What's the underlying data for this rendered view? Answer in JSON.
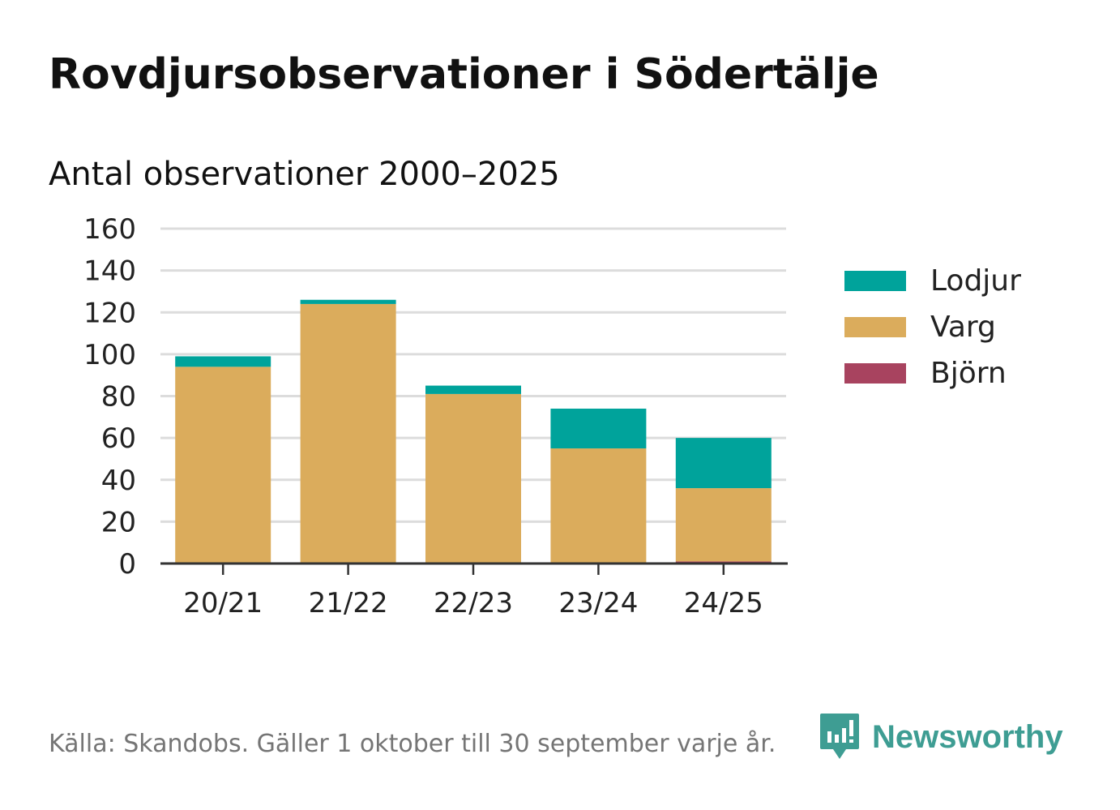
{
  "title": "Rovdjursobservationer i Södertälje",
  "source": "Källa: Skandobs. Gäller 1 oktober till 30 september varje år.",
  "brand": {
    "name": "Newsworthy",
    "logo_icon": "newsworthy-logo-icon",
    "color": "#3e9d93"
  },
  "chart_data": {
    "type": "bar",
    "stacked": true,
    "title": "Antal observationer 2000–2025",
    "xlabel": "",
    "ylabel": "",
    "categories": [
      "20/21",
      "21/22",
      "22/23",
      "23/24",
      "24/25"
    ],
    "ylim": [
      0,
      160
    ],
    "yticks": [
      0,
      20,
      40,
      60,
      80,
      100,
      120,
      140,
      160
    ],
    "grid": true,
    "legend_position": "right",
    "series": [
      {
        "name": "Björn",
        "color": "#a8435f",
        "values": [
          0,
          0,
          0,
          0,
          1
        ]
      },
      {
        "name": "Varg",
        "color": "#dbac5c",
        "values": [
          94,
          124,
          81,
          55,
          35
        ]
      },
      {
        "name": "Lodjur",
        "color": "#00a39b",
        "values": [
          5,
          2,
          4,
          19,
          24
        ]
      }
    ],
    "legend_order": [
      "Lodjur",
      "Varg",
      "Björn"
    ]
  }
}
